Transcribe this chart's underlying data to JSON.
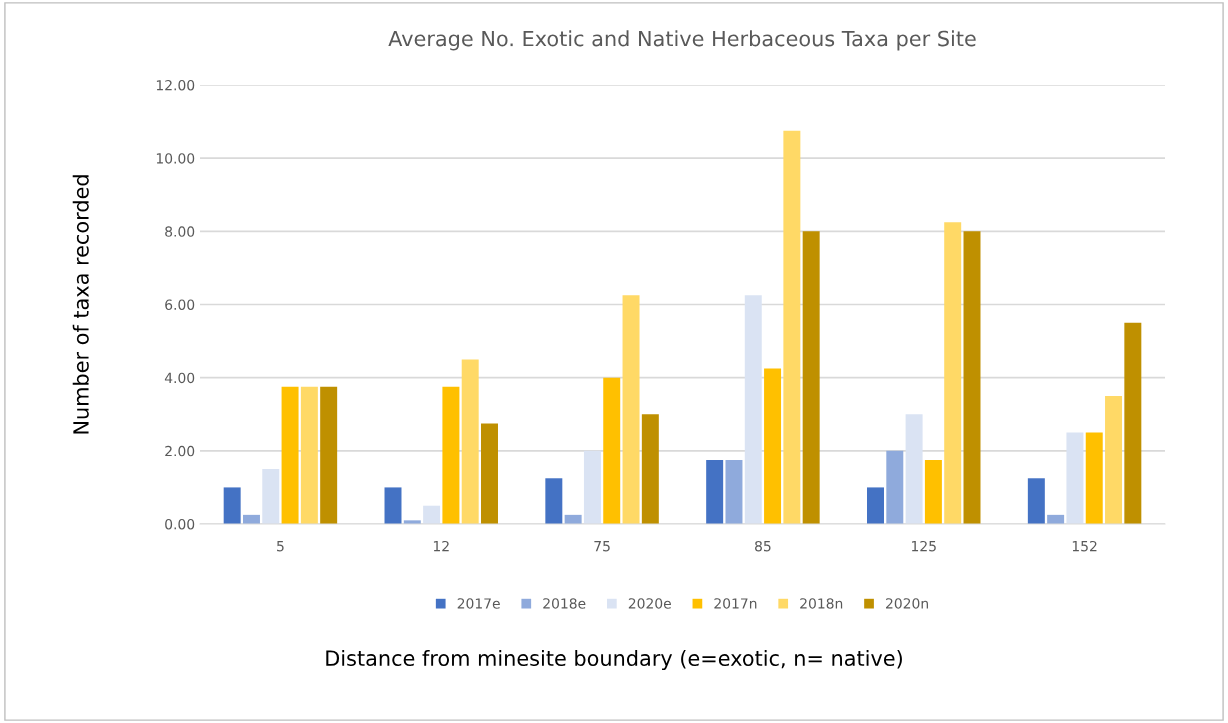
{
  "chart_data": {
    "type": "bar",
    "title": "Average No. Exotic and Native Herbaceous Taxa per Site",
    "xlabel": "Distance from minesite boundary (e=exotic, n= native)",
    "ylabel": "Number of taxa recorded",
    "categories": [
      "5",
      "12",
      "75",
      "85",
      "125",
      "152"
    ],
    "series": [
      {
        "name": "2017e",
        "color": "#4472c4",
        "values": [
          1,
          1,
          1.25,
          1.75,
          1,
          1.25
        ]
      },
      {
        "name": "2018e",
        "color": "#8faadc",
        "values": [
          0.25,
          0.1,
          0.25,
          1.75,
          2,
          0.25
        ]
      },
      {
        "name": "2020e",
        "color": "#dae3f3",
        "values": [
          1.5,
          0.5,
          2,
          6.25,
          3,
          2.5
        ]
      },
      {
        "name": "2017n",
        "color": "#ffc000",
        "values": [
          3.75,
          3.75,
          4,
          4.25,
          1.75,
          2.5
        ]
      },
      {
        "name": "2018n",
        "color": "#ffd966",
        "values": [
          3.75,
          4.5,
          6.25,
          10.75,
          8.25,
          3.5
        ]
      },
      {
        "name": "2020n",
        "color": "#bf9000",
        "values": [
          3.75,
          2.75,
          3,
          8,
          8,
          5.5
        ]
      }
    ],
    "ylim": [
      0,
      12
    ],
    "yticks": [
      {
        "value": 0,
        "label": "0.00"
      },
      {
        "value": 2,
        "label": "2.00"
      },
      {
        "value": 4,
        "label": "4.00"
      },
      {
        "value": 6,
        "label": "6.00"
      },
      {
        "value": 8,
        "label": "8.00"
      },
      {
        "value": 10,
        "label": "10.00"
      },
      {
        "value": 12,
        "label": "12.00"
      }
    ],
    "grid": "y",
    "legend": "bottom"
  }
}
